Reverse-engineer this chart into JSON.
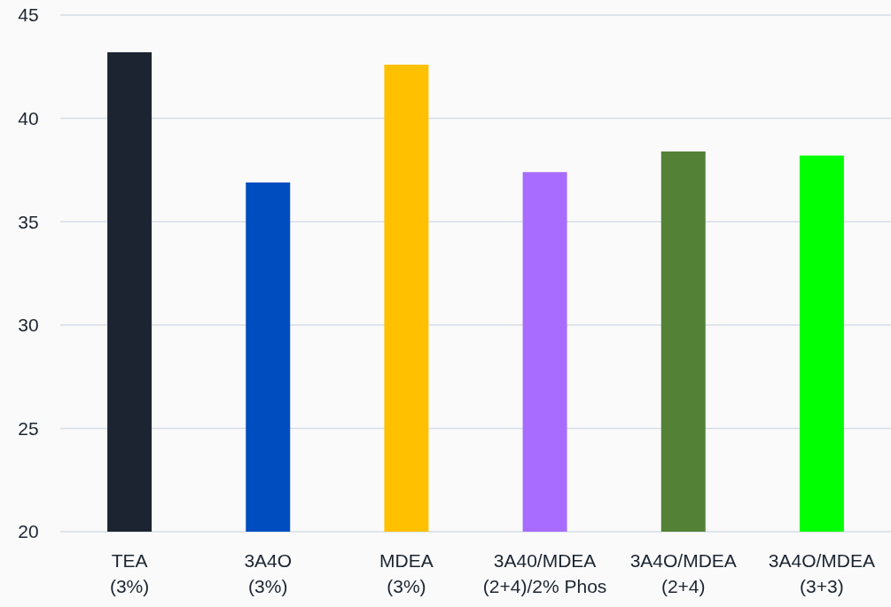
{
  "chart_data": {
    "type": "bar",
    "categories": [
      "TEA\n(3%)",
      "3A4O\n(3%)",
      "MDEA\n(3%)",
      "3A40/MDEA\n(2+4)/2% Phos",
      "3A4O/MDEA\n(2+4)",
      "3A4O/MDEA\n(3+3)"
    ],
    "values": [
      43.2,
      36.9,
      42.6,
      37.4,
      38.4,
      38.2
    ],
    "colors": [
      "#1b2430",
      "#004dc0",
      "#ffc000",
      "#a86cff",
      "#538135",
      "#00ff00"
    ],
    "ylim": [
      20,
      45
    ],
    "yticks": [
      20,
      25,
      30,
      35,
      40,
      45
    ],
    "grid": "y"
  }
}
